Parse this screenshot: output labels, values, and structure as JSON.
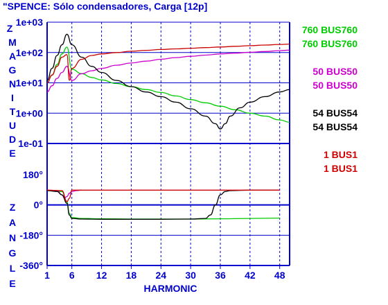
{
  "chart_data": [
    {
      "type": "line",
      "title": "\"SPENCE: Sólo condensadores, Carga [12p]",
      "ylabel_letters": [
        "Z",
        "M",
        "A",
        "G",
        "N",
        "I",
        "T",
        "U",
        "D",
        "E"
      ],
      "ylabel": "Z MAGNITUDE",
      "yscale": "log",
      "ylim": [
        0.01,
        1000
      ],
      "yticks": [
        "1e+03",
        "1e+02",
        "1e+01",
        "1e+00",
        "1e-01"
      ],
      "xlabel": "HARMONIC",
      "xlim": [
        1,
        50
      ],
      "xticks": [
        1,
        6,
        12,
        18,
        24,
        30,
        36,
        42,
        48
      ],
      "grid": true,
      "series": [
        {
          "name": "760 BUS760",
          "color": "#00cc00",
          "x": [
            1,
            2,
            3,
            4,
            5,
            6,
            8,
            10,
            12,
            15,
            18,
            21,
            24,
            27,
            30,
            33,
            36,
            39,
            42,
            45,
            48,
            50
          ],
          "y": [
            10,
            18,
            40,
            90,
            150,
            28,
            20,
            15,
            12.5,
            9.5,
            7.5,
            6,
            4.8,
            3.7,
            2.8,
            2.2,
            1.7,
            1.3,
            1.0,
            0.8,
            0.6,
            0.5
          ]
        },
        {
          "name": "50 BUS50",
          "color": "#cc00cc",
          "x": [
            1,
            2,
            3,
            4,
            5,
            6,
            8,
            10,
            12,
            15,
            18,
            21,
            24,
            27,
            30,
            33,
            36,
            39,
            42,
            45,
            48,
            50
          ],
          "y": [
            5,
            8,
            14,
            22,
            35,
            12,
            20,
            25,
            30,
            38,
            45,
            52,
            60,
            68,
            75,
            82,
            90,
            95,
            102,
            108,
            115,
            120
          ]
        },
        {
          "name": "54 BUS54",
          "color": "#000000",
          "x": [
            1,
            2,
            3,
            4,
            5,
            6,
            8,
            10,
            12,
            15,
            18,
            21,
            24,
            27,
            30,
            33,
            35,
            36,
            37,
            38,
            40,
            42,
            45,
            48,
            50
          ],
          "y": [
            12,
            30,
            80,
            180,
            400,
            180,
            70,
            35,
            22,
            12,
            7.5,
            5,
            3.5,
            2.3,
            1.4,
            0.8,
            0.45,
            0.3,
            0.45,
            0.8,
            1.5,
            2.3,
            3.5,
            5,
            6
          ]
        },
        {
          "name": "1 BUS1",
          "color": "#cc0000",
          "x": [
            1,
            2,
            3,
            4,
            5,
            5.5,
            6,
            8,
            10,
            12,
            15,
            18,
            21,
            24,
            27,
            30,
            33,
            36,
            39,
            42,
            45,
            48,
            50
          ],
          "y": [
            10,
            18,
            35,
            70,
            85,
            12,
            30,
            60,
            80,
            90,
            100,
            110,
            118,
            126,
            132,
            138,
            145,
            152,
            160,
            168,
            176,
            185,
            190
          ]
        }
      ]
    },
    {
      "type": "line",
      "ylabel": "Z ANGLE",
      "ylabel_letters": [
        "Z",
        "A",
        "N",
        "G",
        "L",
        "E"
      ],
      "ylim": [
        -360,
        180
      ],
      "yticks": [
        "180°",
        "0°",
        "-180°",
        "-360°"
      ],
      "xlabel": "HARMONIC",
      "xlim": [
        1,
        50
      ],
      "xticks": [
        1,
        6,
        12,
        18,
        24,
        30,
        36,
        42,
        48
      ],
      "grid": true,
      "series": [
        {
          "name": "760 BUS760",
          "color": "#00cc00",
          "x": [
            1,
            4,
            5,
            5.5,
            6,
            8,
            12,
            18,
            24,
            30,
            36,
            42,
            48
          ],
          "y": [
            85,
            80,
            20,
            -50,
            -75,
            -80,
            -82,
            -84,
            -84,
            -84,
            -82,
            -80,
            -78
          ]
        },
        {
          "name": "50 BUS50",
          "color": "#cc00cc",
          "x": [
            1,
            3,
            4,
            4.5,
            5,
            5.5,
            6,
            7,
            8
          ],
          "y": [
            88,
            85,
            60,
            40,
            50,
            70,
            80,
            85,
            88
          ]
        },
        {
          "name": "54 BUS54",
          "color": "#000000",
          "x": [
            1,
            3,
            4,
            5,
            5.5,
            6,
            8,
            12,
            18,
            24,
            30,
            33,
            34,
            35,
            36,
            37,
            38,
            42,
            48
          ],
          "y": [
            85,
            80,
            60,
            10,
            -60,
            -80,
            -84,
            -85,
            -85,
            -85,
            -84,
            -80,
            -60,
            0,
            60,
            80,
            85,
            88,
            88
          ]
        },
        {
          "name": "1 BUS1",
          "color": "#cc0000",
          "x": [
            1,
            4,
            5,
            5.5,
            6,
            12,
            18,
            24,
            30,
            36,
            42,
            48
          ],
          "y": [
            88,
            85,
            20,
            40,
            88,
            88,
            88,
            88,
            88,
            88,
            88,
            88
          ]
        }
      ]
    }
  ],
  "legend": [
    {
      "lines": [
        "760 BUS760",
        "760 BUS760"
      ],
      "color": "#00cc00"
    },
    {
      "lines": [
        "50 BUS50",
        "50 BUS50"
      ],
      "color": "#cc00cc"
    },
    {
      "lines": [
        "54 BUS54",
        "54 BUS54"
      ],
      "color": "#000000"
    },
    {
      "lines": [
        "1 BUS1",
        "1 BUS1"
      ],
      "color": "#cc0000"
    }
  ],
  "colors": {
    "axis": "#0000cc",
    "grid": "#0000cc",
    "text": "#0000cc"
  }
}
